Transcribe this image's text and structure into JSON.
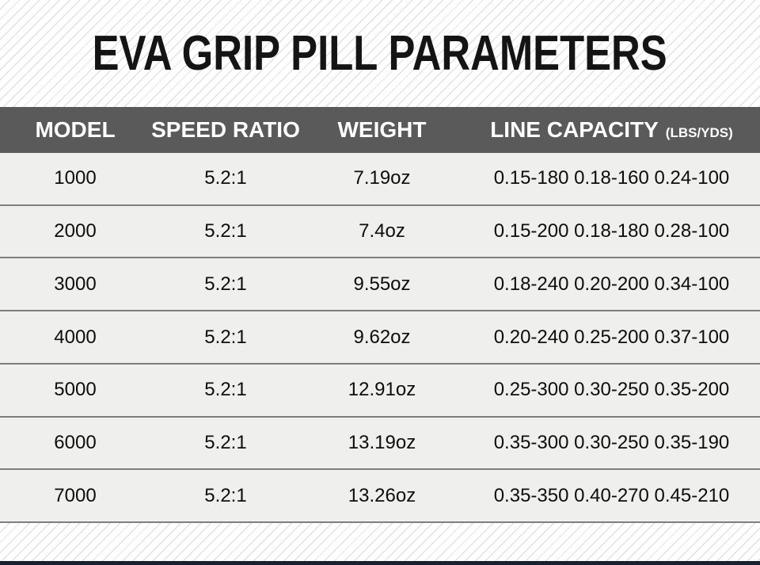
{
  "title": "EVA GRIP PILL PARAMETERS",
  "table_header": {
    "model": "MODEL",
    "speed_ratio": "SPEED RATIO",
    "weight": "WEIGHT",
    "line_capacity": "LINE CAPACITY",
    "line_capacity_unit": "(LBS/YDS)"
  },
  "chart_data": {
    "type": "table",
    "title": "EVA GRIP PILL PARAMETERS",
    "columns": [
      "MODEL",
      "SPEED RATIO",
      "WEIGHT",
      "LINE CAPACITY (LBS/YDS)"
    ],
    "rows": [
      [
        "1000",
        "5.2:1",
        "7.19oz",
        "0.15-180 0.18-160 0.24-100"
      ],
      [
        "2000",
        "5.2:1",
        "7.4oz",
        "0.15-200 0.18-180 0.28-100"
      ],
      [
        "3000",
        "5.2:1",
        "9.55oz",
        "0.18-240 0.20-200 0.34-100"
      ],
      [
        "4000",
        "5.2:1",
        "9.62oz",
        "0.20-240 0.25-200 0.37-100"
      ],
      [
        "5000",
        "5.2:1",
        "12.91oz",
        "0.25-300 0.30-250 0.35-200"
      ],
      [
        "6000",
        "5.2:1",
        "13.19oz",
        "0.35-300 0.30-250 0.35-190"
      ],
      [
        "7000",
        "5.2:1",
        "13.26oz",
        "0.35-350 0.40-270 0.45-210"
      ]
    ]
  },
  "colors": {
    "header_bg": "#5a5a5a",
    "header_text": "#ffffff",
    "row_bg": "#efefed",
    "row_divider": "#7e7e7e",
    "title_text": "#141414",
    "stripe": "#d9d9d9",
    "bottom_accent_bar": "#16222e"
  }
}
